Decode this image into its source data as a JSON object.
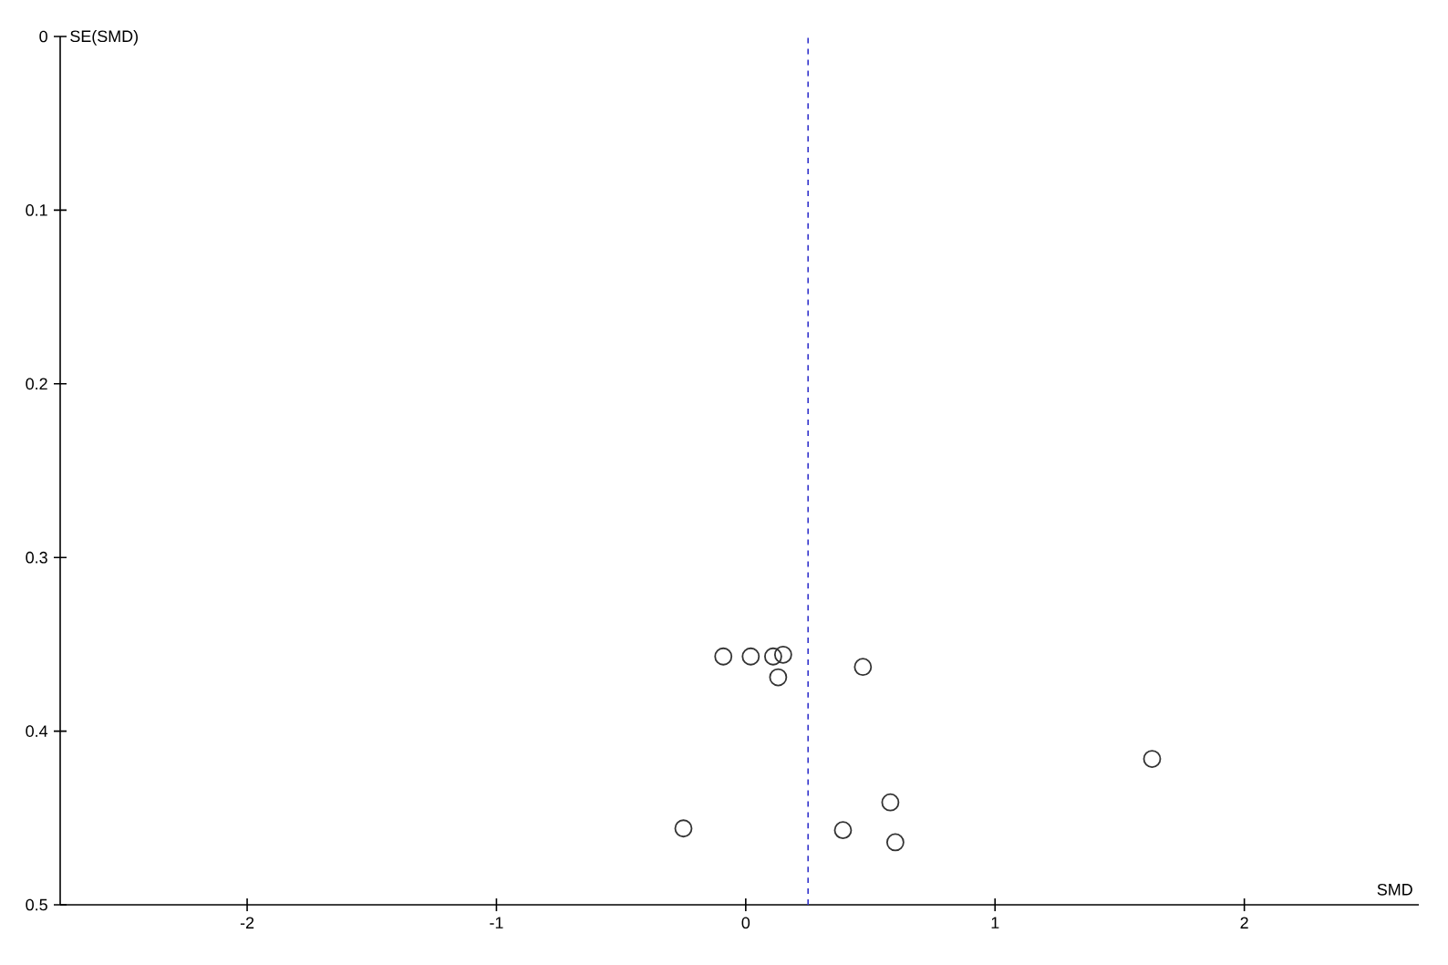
{
  "chart_data": {
    "type": "scatter",
    "xlabel": "SMD",
    "ylabel": "SE(SMD)",
    "x": [
      -0.09,
      0.02,
      0.11,
      0.15,
      0.13,
      0.47,
      -0.25,
      0.39,
      0.58,
      0.6,
      1.63
    ],
    "values": [
      0.357,
      0.357,
      0.357,
      0.356,
      0.369,
      0.363,
      0.456,
      0.457,
      0.441,
      0.464,
      0.416
    ],
    "color": "#333333",
    "marker": "circle",
    "xlim": [
      -2.75,
      2.7
    ],
    "ylim": [
      0.5,
      0
    ],
    "xticks": [
      -2,
      -1,
      0,
      1,
      2
    ],
    "yticks": [
      0,
      0.1,
      0.2,
      0.3,
      0.4,
      0.5
    ],
    "ref_lines": [
      {
        "axis": "x",
        "value": 0.25,
        "color": "#3333cc",
        "line_style": "dashed"
      }
    ],
    "grid": false
  }
}
